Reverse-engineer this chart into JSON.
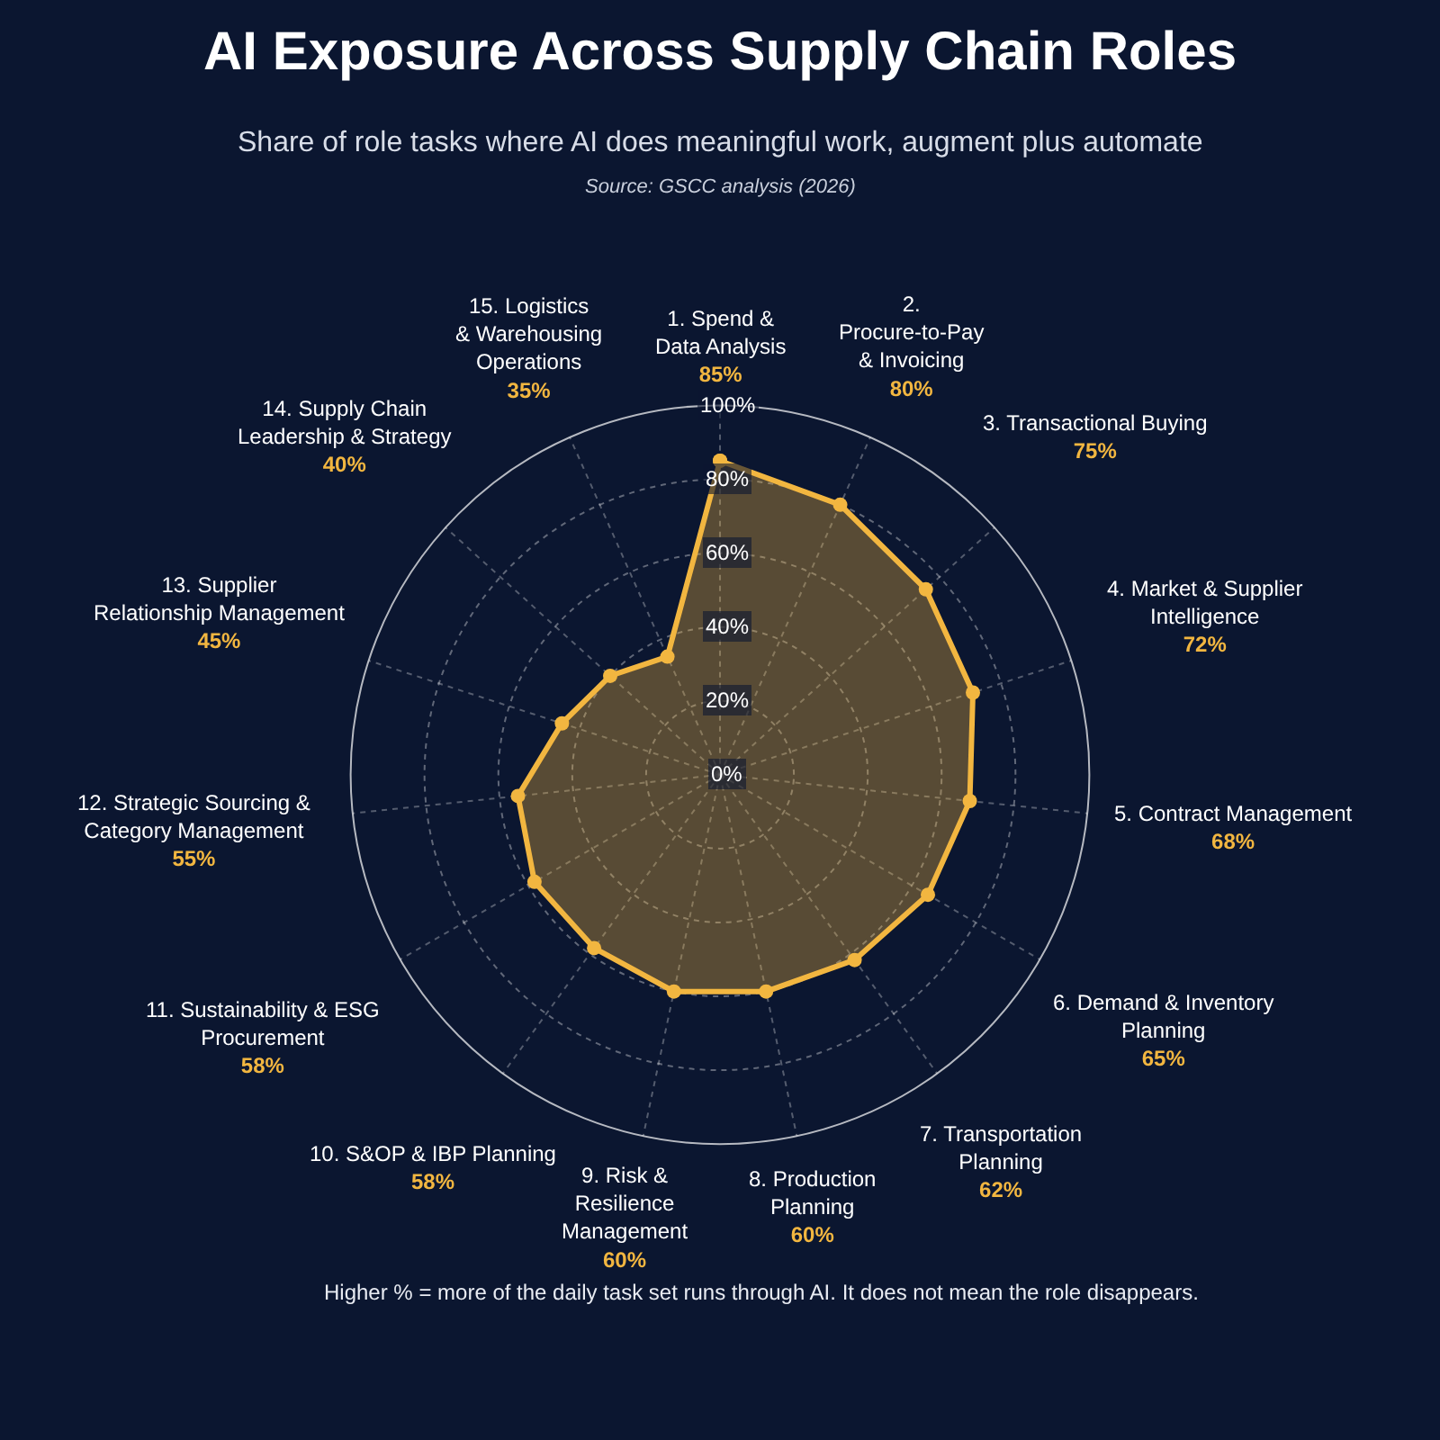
{
  "chart_data": {
    "type": "radar",
    "title": "AI Exposure Across Supply Chain Roles",
    "subtitle": "Share of role tasks where AI does meaningful work, augment plus automate",
    "categories": [
      "1. Spend & Data Analysis",
      "2. Procure-to-Pay & Invoicing",
      "3. Transactional Buying",
      "4. Market & Supplier Intelligence",
      "5. Contract Management",
      "6. Demand & Inventory Planning",
      "7. Transportation Planning",
      "8. Production Planning",
      "9. Risk & Resilience Management",
      "10. S&OP & IBP Planning",
      "11. Sustainability & ESG Procurement",
      "12. Strategic Sourcing & Category Management",
      "13. Supplier Relationship Management",
      "14. Supply Chain Leadership & Strategy",
      "15. Logistics & Warehousing Operations"
    ],
    "series": [
      {
        "color": "#f2b640",
        "values": [
          85,
          80,
          75,
          72,
          68,
          65,
          62,
          60,
          60,
          58,
          58,
          55,
          45,
          40,
          35
        ]
      }
    ],
    "ylim": [
      0,
      100
    ],
    "yticks": [
      {
        "value": 0,
        "label": "0%"
      },
      {
        "value": 20,
        "label": "20%"
      },
      {
        "value": 40,
        "label": "40%"
      },
      {
        "value": 60,
        "label": "60%"
      },
      {
        "value": 80,
        "label": "80%"
      },
      {
        "value": 100,
        "label": "100%"
      }
    ],
    "value_labels": [
      "85%",
      "80%",
      "75%",
      "72%",
      "68%",
      "65%",
      "62%",
      "60%",
      "60%",
      "58%",
      "58%",
      "55%",
      "45%",
      "40%",
      "35%"
    ],
    "grid": true,
    "marker": "circle",
    "line_style": "solid",
    "legend": false,
    "annotations": [
      "Source: GSCC analysis (2026)",
      "Higher % = more of the daily task set runs through AI. It does not mean the role disappears."
    ]
  }
}
